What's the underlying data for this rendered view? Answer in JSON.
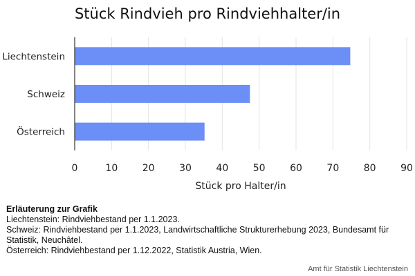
{
  "chart_data": {
    "type": "bar",
    "orientation": "horizontal",
    "title": "Stück Rindvieh pro Rindviehhalter/in",
    "xlabel": "Stück pro Halter/in",
    "ylabel": "",
    "categories": [
      "Liechtenstein",
      "Schweiz",
      "Österreich"
    ],
    "values": [
      74.7,
      47.5,
      35.2
    ],
    "xlim": [
      0,
      90
    ],
    "xticks": [
      0,
      10,
      20,
      30,
      40,
      50,
      60,
      70,
      80,
      90
    ],
    "grid": true,
    "bar_color": "#6b8ff7"
  },
  "notes": {
    "heading": "Erläuterung zur Grafik",
    "lines": [
      "Liechtenstein: Rindviehbestand per 1.1.2023.",
      "Schweiz: Rindviehbestand per 1.1.2023, Landwirtschaftliche Strukturerhebung 2023, Bundesamt für Statistik, Neuchâtel.",
      "Österreich: Rindviehbestand per 1.12.2022, Statistik Austria, Wien."
    ]
  },
  "source": "Amt für Statistik Liechtenstein"
}
